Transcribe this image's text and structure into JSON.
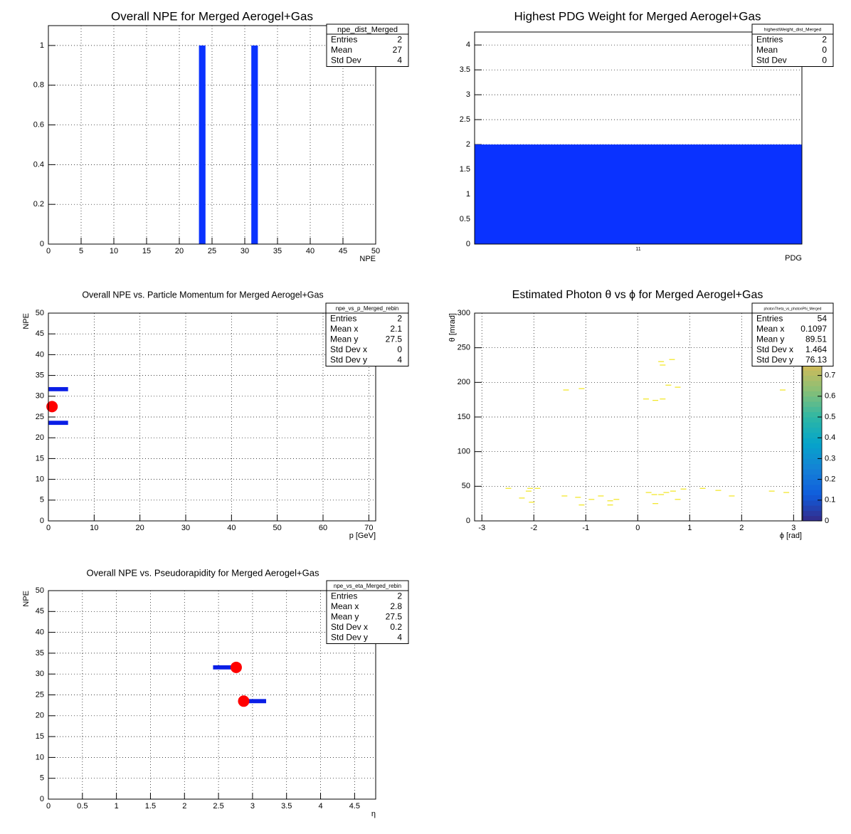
{
  "chart_data": [
    {
      "type": "histogram",
      "title": "Overall NPE for Merged Aerogel+Gas",
      "x_label": "NPE",
      "bins": [
        0,
        1,
        2,
        3,
        4,
        5,
        6,
        7,
        8,
        9,
        10,
        11,
        12,
        13,
        14,
        15,
        16,
        17,
        18,
        19,
        20,
        21,
        22,
        23,
        24,
        25,
        26,
        27,
        28,
        29,
        30,
        31,
        32,
        33,
        34,
        35,
        36,
        37,
        38,
        39,
        40,
        41,
        42,
        43,
        44,
        45,
        46,
        47,
        48,
        49,
        50
      ],
      "counts": [
        0,
        0,
        0,
        0,
        0,
        0,
        0,
        0,
        0,
        0,
        0,
        0,
        0,
        0,
        0,
        0,
        0,
        0,
        0,
        0,
        0,
        0,
        0,
        1,
        0,
        0,
        0,
        0,
        0,
        0,
        0,
        1,
        0,
        0,
        0,
        0,
        0,
        0,
        0,
        0,
        0,
        0,
        0,
        0,
        0,
        0,
        0,
        0,
        0,
        0
      ],
      "color": "#0a32ff",
      "xlim": [
        0,
        50
      ],
      "xticks": [
        0,
        5,
        10,
        15,
        20,
        25,
        30,
        35,
        40,
        45,
        50
      ],
      "ylim": [
        0,
        1.1
      ],
      "yticks": [
        0,
        0.2,
        0.4,
        0.6,
        0.8,
        1
      ],
      "grid": true,
      "stats": {
        "title": "npe_dist_Merged",
        "rows": [
          {
            "label": "Entries",
            "value": 2
          },
          {
            "label": "Mean",
            "value": 27
          },
          {
            "label": "Std Dev",
            "value": 4
          }
        ]
      }
    },
    {
      "type": "bar",
      "title": "Highest PDG Weight for Merged Aerogel+Gas",
      "x_label": "PDG",
      "categories": [
        "11"
      ],
      "values": [
        2
      ],
      "color": "#0a32ff",
      "ylim": [
        0,
        4.26
      ],
      "yticks": [
        0,
        0.5,
        1,
        1.5,
        2,
        2.5,
        3,
        3.5,
        4
      ],
      "grid": true,
      "stats": {
        "title": "highestWeight_dist_Merged",
        "rows": [
          {
            "label": "Entries",
            "value": 2
          },
          {
            "label": "Mean",
            "value": 0
          },
          {
            "label": "Std Dev",
            "value": 0
          }
        ]
      }
    },
    {
      "type": "hist2d",
      "title": "Overall NPE vs. Particle Momentum for Merged Aerogel+Gas",
      "x_label": "p [GeV]",
      "y_label": "NPE",
      "cells": [
        {
          "x": [
            0,
            4.3
          ],
          "y": [
            31.2,
            32.2
          ]
        },
        {
          "x": [
            0,
            4.3
          ],
          "y": [
            23.1,
            24.1
          ]
        }
      ],
      "color": "#0a1ee6",
      "profile": {
        "x": [
          0.8
        ],
        "values": [
          27.5
        ],
        "color": "#ff0000"
      },
      "xlim": [
        0,
        71.5
      ],
      "xticks": [
        0,
        10,
        20,
        30,
        40,
        50,
        60,
        70
      ],
      "ylim": [
        0,
        50
      ],
      "yticks": [
        0,
        5,
        10,
        15,
        20,
        25,
        30,
        35,
        40,
        45,
        50
      ],
      "grid": true,
      "stats": {
        "title": "npe_vs_p_Merged_rebin",
        "rows": [
          {
            "label": "Entries",
            "value": 2
          },
          {
            "label": "Mean x",
            "value": 2.1
          },
          {
            "label": "Mean y",
            "value": 27.5
          },
          {
            "label": "Std Dev x",
            "value": 0
          },
          {
            "label": "Std Dev y",
            "value": 4
          }
        ]
      }
    },
    {
      "type": "scatter",
      "title": "Estimated Photon θ vs ϕ for Merged Aerogel+Gas",
      "x_label": "ϕ [rad]",
      "y_label": "θ [mrad]",
      "x": [
        -2.49,
        -2.1,
        -2.07,
        -1.93,
        -2.23,
        -2.04,
        -1.38,
        -1.08,
        -1.41,
        -1.15,
        -1.08,
        -0.89,
        -0.71,
        -0.53,
        -0.53,
        -0.41,
        0.45,
        0.48,
        0.66,
        0.16,
        0.34,
        0.48,
        0.59,
        0.77,
        0.21,
        0.32,
        0.34,
        0.45,
        0.55,
        0.68,
        0.77,
        0.88,
        1.25,
        1.55,
        1.81,
        2.58,
        2.86,
        2.79
      ],
      "values": [
        47,
        43,
        47,
        47,
        33,
        27,
        189,
        191,
        36,
        34,
        23,
        31,
        36,
        29,
        23,
        31,
        230,
        225,
        233,
        176,
        174,
        176,
        196,
        193,
        41,
        38,
        25,
        38,
        41,
        43,
        31,
        46,
        47,
        44,
        36,
        43,
        41,
        189
      ],
      "color": "#f2e51c",
      "xlim": [
        -3.14,
        3.16
      ],
      "xticks": [
        -3,
        -2,
        -1,
        0,
        1,
        2,
        3
      ],
      "ylim": [
        0,
        300
      ],
      "yticks": [
        0,
        50,
        100,
        150,
        200,
        250,
        300
      ],
      "grid": true,
      "zlim": [
        0,
        1
      ],
      "zticks": [
        0,
        0.1,
        0.2,
        0.3,
        0.4,
        0.5,
        0.6,
        0.7
      ],
      "palette": [
        "#352a87",
        "#0f5cdd",
        "#1481d6",
        "#06a4ca",
        "#2eb7a4",
        "#87bf77",
        "#d1bb59",
        "#fec832",
        "#f9fb0e"
      ],
      "stats": {
        "title": "photonTheta_vs_photonPhi_Merged",
        "rows": [
          {
            "label": "Entries",
            "value": 54
          },
          {
            "label": "Mean x",
            "value": 0.1097
          },
          {
            "label": "Mean y",
            "value": 89.51
          },
          {
            "label": "Std Dev x",
            "value": 1.464
          },
          {
            "label": "Std Dev y",
            "value": 76.13
          }
        ]
      }
    },
    {
      "type": "hist2d",
      "title": "Overall NPE vs. Pseudorapidity for Merged Aerogel+Gas",
      "x_label": "η",
      "y_label": "NPE",
      "cells": [
        {
          "x": [
            2.42,
            2.74
          ],
          "y": [
            31.1,
            32.1
          ]
        },
        {
          "x": [
            2.93,
            3.2
          ],
          "y": [
            23,
            24
          ]
        }
      ],
      "color": "#0a1ee6",
      "profile": {
        "x": [
          2.76,
          2.87
        ],
        "values": [
          31.6,
          23.5
        ],
        "color": "#ff0000"
      },
      "xlim": [
        0,
        4.81
      ],
      "xticks": [
        0,
        0.5,
        1,
        1.5,
        2,
        2.5,
        3,
        3.5,
        4,
        4.5
      ],
      "ylim": [
        0,
        50
      ],
      "yticks": [
        0,
        5,
        10,
        15,
        20,
        25,
        30,
        35,
        40,
        45,
        50
      ],
      "grid": true,
      "stats": {
        "title": "npe_vs_eta_Merged_rebin",
        "rows": [
          {
            "label": "Entries",
            "value": 2
          },
          {
            "label": "Mean x",
            "value": 2.8
          },
          {
            "label": "Mean y",
            "value": 27.5
          },
          {
            "label": "Std Dev x",
            "value": 0.2
          },
          {
            "label": "Std Dev y",
            "value": 4
          }
        ]
      }
    }
  ]
}
